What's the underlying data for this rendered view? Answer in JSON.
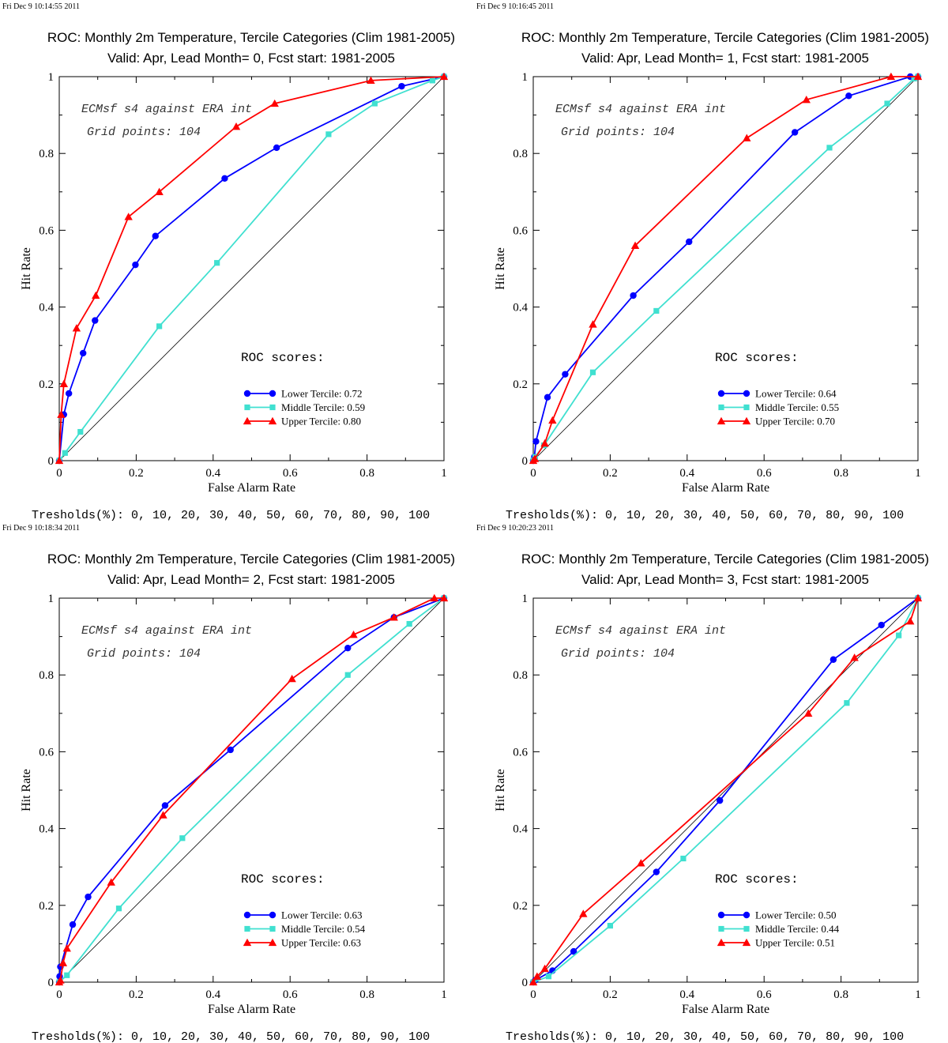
{
  "chart_data": [
    {
      "type": "line",
      "timestamp": "Fri Dec  9 10:14:55 2011",
      "title": "ROC: Monthly 2m Temperature, Tercile Categories (Clim 1981-2005)",
      "subtitle": "Valid: Apr, Lead Month= 0, Fcst start: 1981-2005",
      "xlabel": "False Alarm Rate",
      "ylabel": "Hit Rate",
      "xlim": [
        0,
        1
      ],
      "ylim": [
        0,
        1
      ],
      "grid": false,
      "annotation_source": "ECMsf s4 against ERA int",
      "annotation_points": "Grid points:  104",
      "scores_header": "ROC scores:",
      "thresholds_text": "Tresholds(%): 0, 10, 20, 30, 40, 50, 60, 70, 80, 90, 100",
      "legend_position": "bottom-right",
      "series": [
        {
          "name": "Lower Tercile: 0.72",
          "color": "#0000ff",
          "marker": "circle",
          "x": [
            0,
            0.012,
            0.025,
            0.062,
            0.093,
            0.198,
            0.25,
            0.43,
            0.565,
            0.89,
            1.0
          ],
          "y": [
            0,
            0.12,
            0.175,
            0.28,
            0.365,
            0.51,
            0.585,
            0.735,
            0.815,
            0.975,
            1.0
          ]
        },
        {
          "name": "Middle Tercile: 0.59",
          "color": "#40e0d0",
          "marker": "square",
          "x": [
            0,
            0.015,
            0.055,
            0.26,
            0.41,
            0.7,
            0.82,
            0.97,
            1.0
          ],
          "y": [
            0,
            0.02,
            0.075,
            0.35,
            0.515,
            0.85,
            0.93,
            0.99,
            1.0
          ]
        },
        {
          "name": "Upper Tercile: 0.80",
          "color": "#ff0000",
          "marker": "triangle",
          "x": [
            0,
            0.005,
            0.012,
            0.045,
            0.095,
            0.18,
            0.26,
            0.46,
            0.56,
            0.81,
            1.0
          ],
          "y": [
            0,
            0.12,
            0.2,
            0.345,
            0.43,
            0.635,
            0.7,
            0.87,
            0.93,
            0.99,
            1.0
          ]
        }
      ]
    },
    {
      "type": "line",
      "timestamp": "Fri Dec  9 10:16:45 2011",
      "title": "ROC: Monthly 2m Temperature, Tercile Categories (Clim 1981-2005)",
      "subtitle": "Valid: Apr, Lead Month= 1, Fcst start: 1981-2005",
      "xlabel": "False Alarm Rate",
      "ylabel": "Hit Rate",
      "xlim": [
        0,
        1
      ],
      "ylim": [
        0,
        1
      ],
      "grid": false,
      "annotation_source": "ECMsf s4 against ERA int",
      "annotation_points": "Grid points:  104",
      "scores_header": "ROC scores:",
      "thresholds_text": "Tresholds(%): 0, 10, 20, 30, 40, 50, 60, 70, 80, 90, 100",
      "legend_position": "bottom-right",
      "series": [
        {
          "name": "Lower Tercile: 0.64",
          "color": "#0000ff",
          "marker": "circle",
          "x": [
            0,
            0.003,
            0.007,
            0.037,
            0.083,
            0.26,
            0.405,
            0.68,
            0.82,
            0.98,
            1.0
          ],
          "y": [
            0,
            0.01,
            0.05,
            0.165,
            0.225,
            0.43,
            0.57,
            0.855,
            0.95,
            1.0,
            1.0
          ]
        },
        {
          "name": "Middle Tercile: 0.55",
          "color": "#40e0d0",
          "marker": "square",
          "x": [
            0,
            0.005,
            0.028,
            0.155,
            0.32,
            0.77,
            0.92,
            0.99,
            1.0
          ],
          "y": [
            0,
            0.01,
            0.04,
            0.23,
            0.39,
            0.815,
            0.93,
            0.995,
            1.0
          ]
        },
        {
          "name": "Upper Tercile: 0.70",
          "color": "#ff0000",
          "marker": "triangle",
          "x": [
            0,
            0.004,
            0.03,
            0.05,
            0.155,
            0.265,
            0.555,
            0.71,
            0.93,
            1.0
          ],
          "y": [
            0,
            0.005,
            0.045,
            0.105,
            0.355,
            0.56,
            0.84,
            0.94,
            1.0,
            1.0
          ]
        }
      ]
    },
    {
      "type": "line",
      "timestamp": "Fri Dec  9 10:18:34 2011",
      "title": "ROC: Monthly 2m Temperature, Tercile Categories (Clim 1981-2005)",
      "subtitle": "Valid: Apr, Lead Month= 2, Fcst start: 1981-2005",
      "xlabel": "False Alarm Rate",
      "ylabel": "Hit Rate",
      "xlim": [
        0,
        1
      ],
      "ylim": [
        0,
        1
      ],
      "grid": false,
      "annotation_source": "ECMsf s4 against ERA int",
      "annotation_points": "Grid points:  104",
      "scores_header": "ROC scores:",
      "thresholds_text": "Tresholds(%): 0, 10, 20, 30, 40, 50, 60, 70, 80, 90, 100",
      "legend_position": "bottom-right",
      "series": [
        {
          "name": "Lower Tercile: 0.63",
          "color": "#0000ff",
          "marker": "circle",
          "x": [
            0,
            0.001,
            0.003,
            0.035,
            0.075,
            0.275,
            0.445,
            0.75,
            0.87,
            1.0
          ],
          "y": [
            0,
            0.015,
            0.04,
            0.15,
            0.222,
            0.46,
            0.605,
            0.87,
            0.95,
            1.0
          ]
        },
        {
          "name": "Middle Tercile: 0.54",
          "color": "#40e0d0",
          "marker": "square",
          "x": [
            0,
            0.02,
            0.155,
            0.32,
            0.75,
            0.91,
            1.0
          ],
          "y": [
            0,
            0.018,
            0.192,
            0.375,
            0.8,
            0.933,
            1.0
          ]
        },
        {
          "name": "Upper Tercile: 0.63",
          "color": "#ff0000",
          "marker": "triangle",
          "x": [
            0,
            0.003,
            0.01,
            0.02,
            0.135,
            0.27,
            0.605,
            0.765,
            0.87,
            0.975,
            1.0
          ],
          "y": [
            0,
            0.005,
            0.05,
            0.088,
            0.26,
            0.435,
            0.79,
            0.905,
            0.95,
            1.0,
            1.0
          ]
        }
      ]
    },
    {
      "type": "line",
      "timestamp": "Fri Dec  9 10:20:23 2011",
      "title": "ROC: Monthly 2m Temperature, Tercile Categories (Clim 1981-2005)",
      "subtitle": "Valid: Apr, Lead Month= 3, Fcst start: 1981-2005",
      "xlabel": "False Alarm Rate",
      "ylabel": "Hit Rate",
      "xlim": [
        0,
        1
      ],
      "ylim": [
        0,
        1
      ],
      "grid": false,
      "annotation_source": "ECMsf s4 against ERA int",
      "annotation_points": "Grid points:  104",
      "scores_header": "ROC scores:",
      "thresholds_text": "Tresholds(%): 0, 10, 20, 30, 40, 50, 60, 70, 80, 90, 100",
      "legend_position": "bottom-right",
      "series": [
        {
          "name": "Lower Tercile: 0.50",
          "color": "#0000ff",
          "marker": "circle",
          "x": [
            0,
            0.005,
            0.05,
            0.105,
            0.32,
            0.485,
            0.78,
            0.905,
            1.0
          ],
          "y": [
            0,
            0.005,
            0.03,
            0.08,
            0.287,
            0.473,
            0.84,
            0.93,
            1.0
          ]
        },
        {
          "name": "Middle Tercile: 0.44",
          "color": "#40e0d0",
          "marker": "square",
          "x": [
            0,
            0.04,
            0.2,
            0.39,
            0.815,
            0.95,
            1.0
          ],
          "y": [
            0,
            0.015,
            0.147,
            0.322,
            0.727,
            0.903,
            1.0
          ]
        },
        {
          "name": "Upper Tercile: 0.51",
          "color": "#ff0000",
          "marker": "triangle",
          "x": [
            0,
            0.01,
            0.03,
            0.13,
            0.28,
            0.715,
            0.835,
            0.98,
            1.0
          ],
          "y": [
            0,
            0.015,
            0.035,
            0.178,
            0.31,
            0.7,
            0.845,
            0.94,
            1.0
          ]
        }
      ]
    }
  ]
}
